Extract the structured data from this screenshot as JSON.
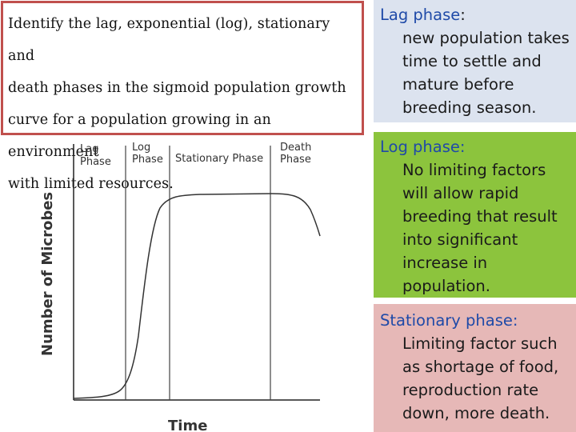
{
  "question": {
    "lines": [
      "Identify the lag, exponential (log), stationary and",
      "death phases in the sigmoid population growth",
      "curve for a population growing in an environment",
      "with limited resources."
    ]
  },
  "graph": {
    "phase_labels": {
      "lag": [
        "Lag",
        "Phase"
      ],
      "log": [
        "Log",
        "Phase"
      ],
      "stationary": "Stationary Phase",
      "death": [
        "Death",
        "Phase"
      ]
    },
    "y_axis_label": "Number of Microbes",
    "x_axis_label": "Time"
  },
  "panels": {
    "lag": {
      "title": "Lag phase",
      "desc_lines": [
        "new population takes",
        "time to settle and",
        "mature before",
        "breeding season."
      ]
    },
    "log": {
      "title": "Log phase:",
      "desc_lines": [
        "No limiting factors",
        "will allow rapid",
        "breeding that result",
        "into significant",
        "increase in",
        "population."
      ]
    },
    "stationary": {
      "title": "Stationary phase:",
      "desc_lines": [
        "Limiting factor such",
        "as shortage of food,",
        "reproduction rate",
        "down, more death."
      ]
    }
  },
  "colors": {
    "question_border": "#c0504d",
    "lag_panel": "#dce3ef",
    "log_panel": "#8cc43d",
    "stationary_panel": "#e6b8b7",
    "title_text": "#1f4aa8"
  }
}
